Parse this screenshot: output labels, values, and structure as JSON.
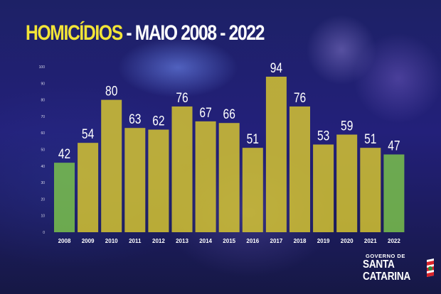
{
  "title": {
    "part1": "HOMICÍDIOS",
    "part2": " - MAIO 2008 - 2022"
  },
  "logo": {
    "line0": "GOVERNO DE",
    "line1": "SANTA",
    "line2": "CATARINA"
  },
  "colors": {
    "yellow_bar": "#dcca2e",
    "green_bar": "#7ec84a",
    "title_yellow": "#f2e437"
  },
  "chart_data": {
    "type": "bar",
    "categories": [
      "2008",
      "2009",
      "2010",
      "2011",
      "2012",
      "2013",
      "2014",
      "2015",
      "2016",
      "2017",
      "2018",
      "2019",
      "2020",
      "2021",
      "2022"
    ],
    "values": [
      42,
      54,
      80,
      63,
      62,
      76,
      67,
      66,
      51,
      94,
      76,
      53,
      59,
      51,
      47
    ],
    "highlighted": [
      "2008",
      "2022"
    ],
    "yticks": [
      0,
      10,
      20,
      30,
      40,
      50,
      60,
      70,
      80,
      90,
      100
    ],
    "ylim": [
      0,
      100
    ],
    "grid": false,
    "legend": "none",
    "data_labels": true
  }
}
